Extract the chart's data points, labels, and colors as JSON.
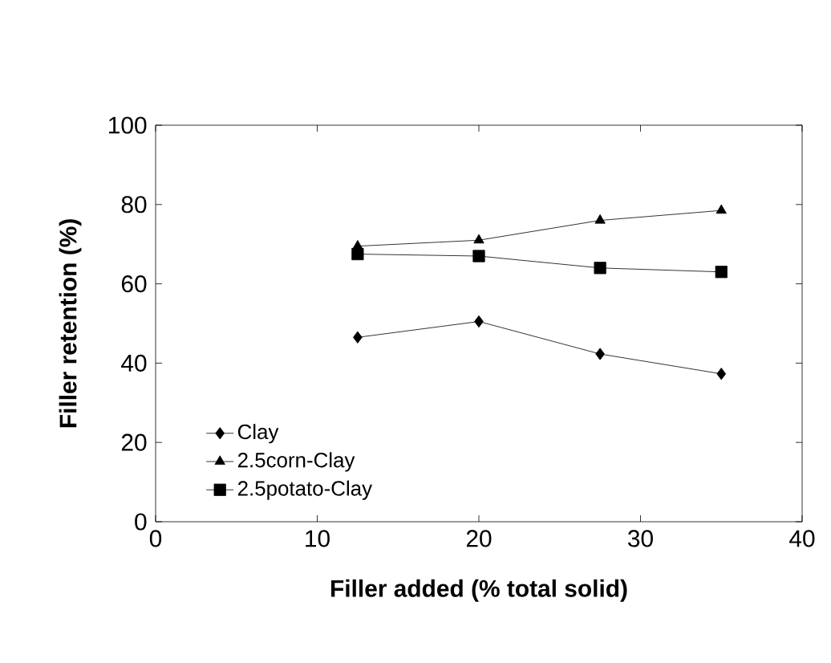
{
  "chart_data": {
    "type": "line",
    "xlabel": "Filler added (% total solid)",
    "ylabel": "Filler retention (%)",
    "xlim": [
      0,
      40
    ],
    "xticks": [
      0,
      10,
      20,
      30,
      40
    ],
    "ylim": [
      0,
      100
    ],
    "yticks": [
      0,
      20,
      40,
      60,
      80,
      100
    ],
    "grid": false,
    "legend": "bottom left",
    "series": [
      {
        "name": "Clay",
        "color": "#000000",
        "marker": "diamond",
        "x": [
          12.5,
          20,
          27.5,
          35
        ],
        "values": [
          46.5,
          50.5,
          42.3,
          37.3
        ]
      },
      {
        "name": "2.5corn-Clay",
        "color": "#000000",
        "marker": "triangle",
        "x": [
          12.5,
          20,
          27.5,
          35
        ],
        "values": [
          69.5,
          71,
          76,
          78.5
        ]
      },
      {
        "name": "2.5potato-Clay",
        "color": "#000000",
        "marker": "square",
        "x": [
          12.5,
          20,
          27.5,
          35
        ],
        "values": [
          67.5,
          67,
          64,
          63
        ]
      }
    ]
  }
}
